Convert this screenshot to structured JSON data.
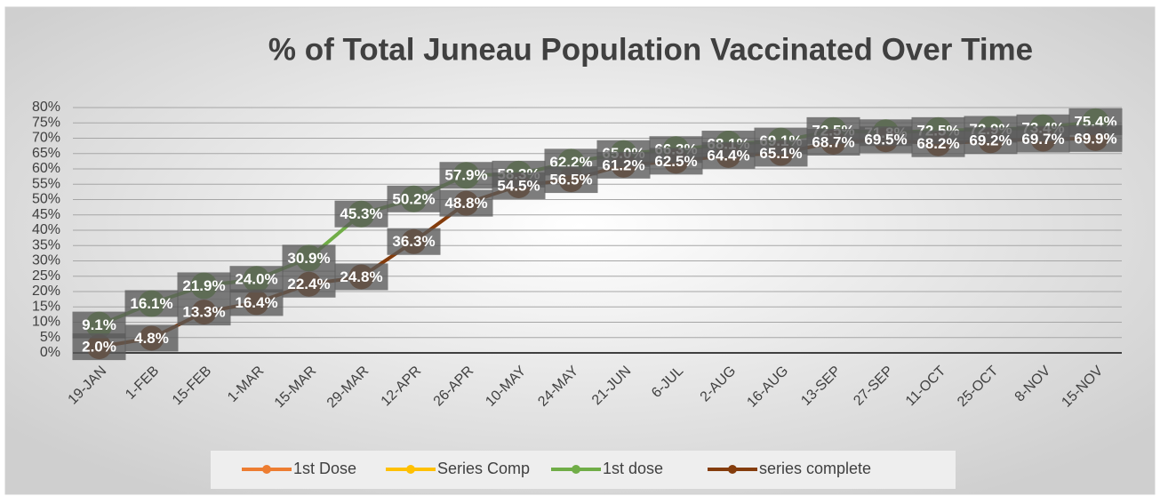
{
  "chart_data": {
    "type": "line",
    "title": "% of Total Juneau Population Vaccinated Over Time",
    "categories": [
      "19-JAN",
      "1-FEB",
      "15-FEB",
      "1-MAR",
      "15-MAR",
      "29-MAR",
      "12-APR",
      "26-APR",
      "10-MAY",
      "24-MAY",
      "21-JUN",
      "6-JUL",
      "2-AUG",
      "16-AUG",
      "13-SEP",
      "27-SEP",
      "11-OCT",
      "25-OCT",
      "8-NOV",
      "15-NOV"
    ],
    "series": [
      {
        "name": "1st Dose",
        "color": "#ed7d31",
        "values": [
          null,
          null,
          null,
          null,
          null,
          null,
          null,
          null,
          null,
          null,
          null,
          null,
          null,
          null,
          null,
          null,
          null,
          null,
          null,
          null
        ]
      },
      {
        "name": "Series Comp",
        "color": "#ffc000",
        "values": [
          null,
          null,
          null,
          null,
          null,
          null,
          null,
          null,
          null,
          null,
          null,
          null,
          null,
          null,
          null,
          null,
          null,
          null,
          null,
          null
        ]
      },
      {
        "name": "1st dose",
        "color": "#70ad47",
        "values": [
          9.1,
          16.1,
          21.9,
          24.0,
          30.9,
          45.3,
          50.2,
          57.9,
          58.3,
          62.2,
          65.0,
          66.3,
          68.1,
          69.1,
          72.5,
          71.8,
          72.5,
          72.9,
          73.4,
          75.4
        ],
        "value_labels": [
          "9.1%",
          "16.1%",
          "21.9%",
          "24.0%",
          "30.9%",
          "45.3%",
          "50.2%",
          "57.9%",
          "58.3%",
          "62.2%",
          "65.0%",
          "66.3%",
          "68.1%",
          "69.1%",
          "72.5%",
          "71.8%",
          "72.5%",
          "72.9%",
          "73.4%",
          "75.4%"
        ]
      },
      {
        "name": "series complete",
        "color": "#843c0c",
        "values": [
          2.0,
          4.8,
          13.3,
          16.4,
          22.4,
          24.8,
          36.3,
          48.8,
          54.5,
          56.5,
          61.2,
          62.5,
          64.4,
          65.1,
          68.7,
          69.5,
          68.2,
          69.2,
          69.7,
          69.9
        ],
        "value_labels": [
          "2.0%",
          "4.8%",
          "13.3%",
          "16.4%",
          "22.4%",
          "24.8%",
          "36.3%",
          "48.8%",
          "54.5%",
          "56.5%",
          "61.2%",
          "62.5%",
          "64.4%",
          "65.1%",
          "68.7%",
          "69.5%",
          "68.2%",
          "69.2%",
          "69.7%",
          "69.9%"
        ]
      }
    ],
    "ylim": [
      0,
      80
    ],
    "yticks": [
      {
        "value": 0,
        "label": "0%"
      },
      {
        "value": 5,
        "label": "5%"
      },
      {
        "value": 10,
        "label": "10%"
      },
      {
        "value": 15,
        "label": "15%"
      },
      {
        "value": 20,
        "label": "20%"
      },
      {
        "value": 25,
        "label": "25%"
      },
      {
        "value": 30,
        "label": "30%"
      },
      {
        "value": 35,
        "label": "35%"
      },
      {
        "value": 40,
        "label": "40%"
      },
      {
        "value": 45,
        "label": "45%"
      },
      {
        "value": 50,
        "label": "50%"
      },
      {
        "value": 55,
        "label": "55%"
      },
      {
        "value": 60,
        "label": "60%"
      },
      {
        "value": 65,
        "label": "65%"
      },
      {
        "value": 70,
        "label": "70%"
      },
      {
        "value": 75,
        "label": "75%"
      },
      {
        "value": 80,
        "label": "80%"
      }
    ],
    "grid": true,
    "legend": "bottom"
  }
}
